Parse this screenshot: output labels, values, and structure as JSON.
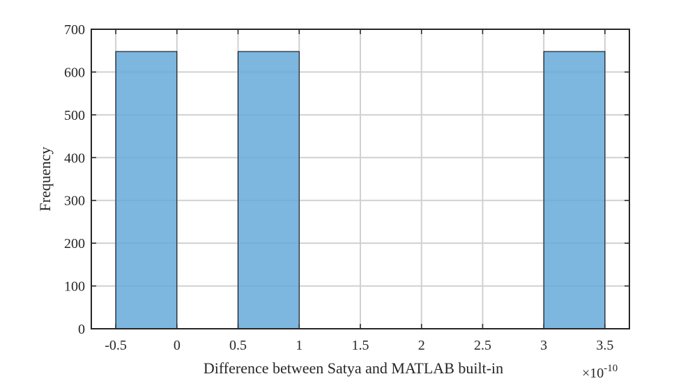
{
  "chart_data": {
    "type": "bar",
    "subtype": "histogram",
    "title": "",
    "xlabel": "Difference between Satya and MATLAB built-in",
    "ylabel": "Frequency",
    "x_exponent_label": "×10",
    "x_exponent_power": "-10",
    "xlim": [
      -0.7,
      3.7
    ],
    "ylim": [
      0,
      700
    ],
    "xticks": [
      "-0.5",
      "0",
      "0.5",
      "1",
      "1.5",
      "2",
      "2.5",
      "3",
      "3.5"
    ],
    "xtick_values": [
      -0.5,
      0,
      0.5,
      1,
      1.5,
      2,
      2.5,
      3,
      3.5
    ],
    "yticks": [
      "0",
      "100",
      "200",
      "300",
      "400",
      "500",
      "600",
      "700"
    ],
    "ytick_values": [
      0,
      100,
      200,
      300,
      400,
      500,
      600,
      700
    ],
    "grid": true,
    "bins": [
      {
        "x_start": -0.5,
        "x_end": 0,
        "count": 648
      },
      {
        "x_start": 0.5,
        "x_end": 1,
        "count": 648
      },
      {
        "x_start": 3,
        "x_end": 3.5,
        "count": 648
      }
    ],
    "colors": {
      "bar_fill": "#66a9d9",
      "bar_edge": "#000000",
      "grid": "#d0d0d0",
      "axis": "#262626"
    }
  }
}
